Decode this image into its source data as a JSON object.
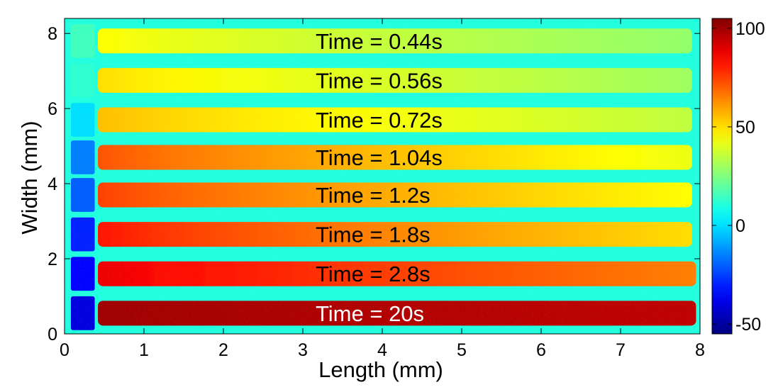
{
  "chart_data": {
    "type": "heatmap",
    "xlabel": "Length (mm)",
    "ylabel": "Width (mm)",
    "xlim": [
      0,
      8
    ],
    "ylim": [
      0,
      8.4
    ],
    "xticks": [
      "0",
      "1",
      "2",
      "3",
      "4",
      "5",
      "6",
      "7",
      "8"
    ],
    "yticks": [
      "0",
      "2",
      "4",
      "6",
      "8"
    ],
    "colorbar": {
      "clim": [
        -55,
        105
      ],
      "ticks": [
        "-50",
        "0",
        "50",
        "100"
      ],
      "colormap": "jet"
    },
    "background_value": 10,
    "stripes": [
      {
        "label": "Time = 0.44s",
        "y_center": 7.8,
        "x_start": 0.42,
        "x_end": 7.9,
        "value_start": 45,
        "value_end": 28,
        "dark_left_value": 15
      },
      {
        "label": "Time = 0.56s",
        "y_center": 6.75,
        "x_start": 0.42,
        "x_end": 7.9,
        "value_start": 50,
        "value_end": 30,
        "dark_left_value": 12
      },
      {
        "label": "Time = 0.72s",
        "y_center": 5.7,
        "x_start": 0.42,
        "x_end": 7.9,
        "value_start": 55,
        "value_end": 35,
        "dark_left_value": 0
      },
      {
        "label": "Time = 1.04s",
        "y_center": 4.7,
        "x_start": 0.42,
        "x_end": 7.9,
        "value_start": 72,
        "value_end": 42,
        "dark_left_value": -15
      },
      {
        "label": "Time = 1.2s",
        "y_center": 3.7,
        "x_start": 0.42,
        "x_end": 7.9,
        "value_start": 75,
        "value_end": 45,
        "dark_left_value": -20
      },
      {
        "label": "Time = 1.8s",
        "y_center": 2.65,
        "x_start": 0.42,
        "x_end": 7.9,
        "value_start": 82,
        "value_end": 50,
        "dark_left_value": -30
      },
      {
        "label": "Time = 2.8s",
        "y_center": 1.6,
        "x_start": 0.42,
        "x_end": 7.95,
        "value_start": 88,
        "value_end": 65,
        "dark_left_value": -35
      },
      {
        "label": "Time = 20s",
        "y_center": 0.55,
        "x_start": 0.42,
        "x_end": 7.95,
        "value_start": 100,
        "value_end": 95,
        "dark_left_value": -40
      }
    ],
    "annotation_colors": {
      "default": "#000000",
      "last": "#ffffff"
    }
  }
}
